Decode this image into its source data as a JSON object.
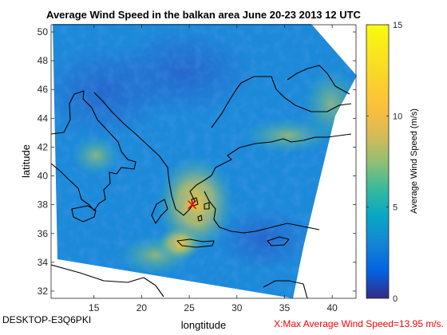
{
  "figure": {
    "title": "Average Wind Speed in the balkan area June 20-23 2013 12 UTC",
    "footer_left": "DESKTOP-E3Q6PKI",
    "footer_right": "X:Max Average Wind Speed=13.95 m/s."
  },
  "chart_data": {
    "type": "heatmap",
    "title": "Average Wind Speed in the balkan area June 20-23 2013 12 UTC",
    "xlabel": "longtitude",
    "ylabel": "latitude",
    "xlim": [
      10.5,
      42.5
    ],
    "ylim": [
      31.5,
      50.5
    ],
    "xticks": [
      15,
      20,
      25,
      30,
      35,
      40
    ],
    "yticks": [
      32,
      34,
      36,
      38,
      40,
      42,
      44,
      46,
      48,
      50
    ],
    "colorbar": {
      "label": "Average Wind Speed (m/s)",
      "range": [
        0,
        15
      ],
      "ticks": [
        0,
        5,
        10,
        15
      ],
      "colormap": "parula"
    },
    "max_marker": {
      "lon": 25.3,
      "lat": 38.0,
      "value": 13.95,
      "symbol": "x",
      "color": "#ff0000"
    },
    "colors": {
      "land_outline": "#000000",
      "marker": "#ff0000",
      "footer_right": "#ff0000"
    }
  }
}
